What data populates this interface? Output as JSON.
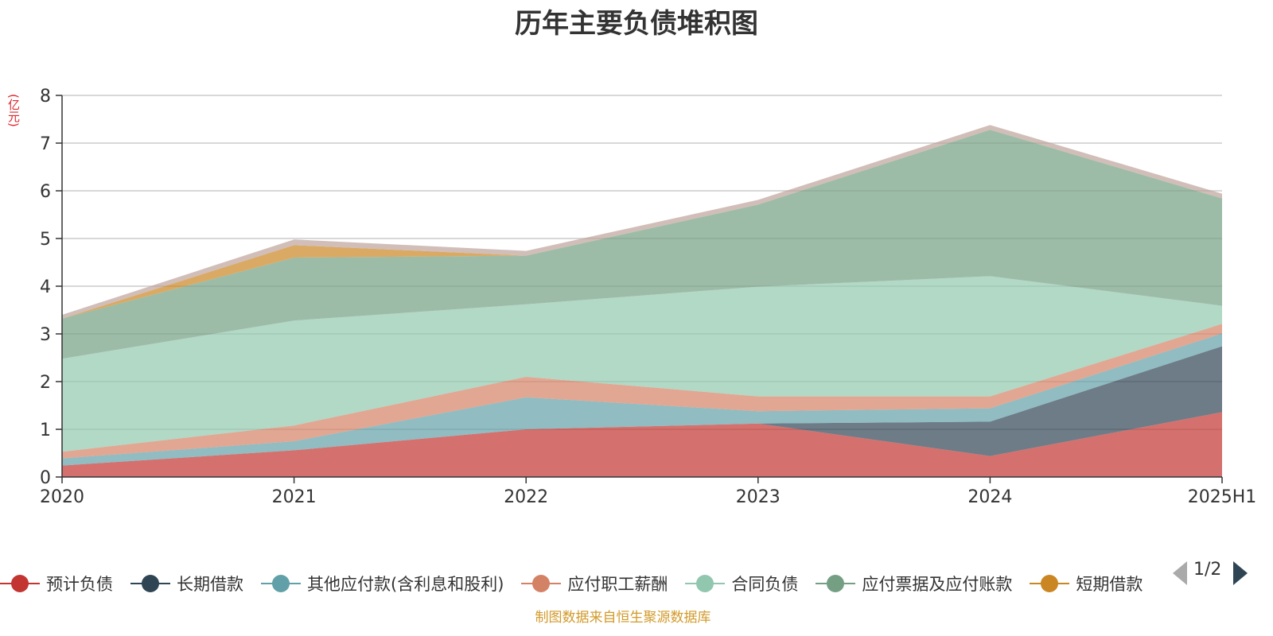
{
  "chart_data": {
    "type": "area",
    "stacked": true,
    "title": "历年主要负债堆积图",
    "ylabel": "(亿元)",
    "categories": [
      "2020",
      "2021",
      "2022",
      "2023",
      "2024",
      "2025H1"
    ],
    "ylim": [
      0,
      8
    ],
    "yticks": [
      0,
      1,
      2,
      3,
      4,
      5,
      6,
      7,
      8
    ],
    "grid": true,
    "series": [
      {
        "name": "预计负债",
        "color": "#c23531",
        "values": [
          0.24,
          0.56,
          1.0,
          1.12,
          0.44,
          1.36
        ]
      },
      {
        "name": "长期借款",
        "color": "#2f4554",
        "values": [
          0.0,
          0.0,
          0.0,
          0.0,
          0.72,
          1.38
        ]
      },
      {
        "name": "其他应付款(含利息和股利)",
        "color": "#61a0a8",
        "values": [
          0.15,
          0.19,
          0.67,
          0.26,
          0.28,
          0.27
        ]
      },
      {
        "name": "应付职工薪酬",
        "color": "#d48265",
        "values": [
          0.14,
          0.33,
          0.43,
          0.31,
          0.25,
          0.2
        ]
      },
      {
        "name": "合同负债",
        "color": "#91c7ae",
        "values": [
          1.95,
          2.2,
          1.52,
          2.3,
          2.52,
          0.38
        ]
      },
      {
        "name": "应付票据及应付账款",
        "color": "#749f83",
        "values": [
          0.84,
          1.32,
          1.02,
          1.72,
          3.07,
          2.25
        ]
      },
      {
        "name": "短期借款",
        "color": "#ca8622",
        "values": [
          0.0,
          0.26,
          0.0,
          0.0,
          0.0,
          0.0
        ]
      },
      {
        "name": "",
        "color": "#bda29a",
        "values": [
          0.08,
          0.12,
          0.1,
          0.1,
          0.1,
          0.1
        ]
      }
    ],
    "legend_position": "bottom",
    "legend_page": "1/2"
  },
  "source_note": "制图数据来自恒生聚源数据库"
}
